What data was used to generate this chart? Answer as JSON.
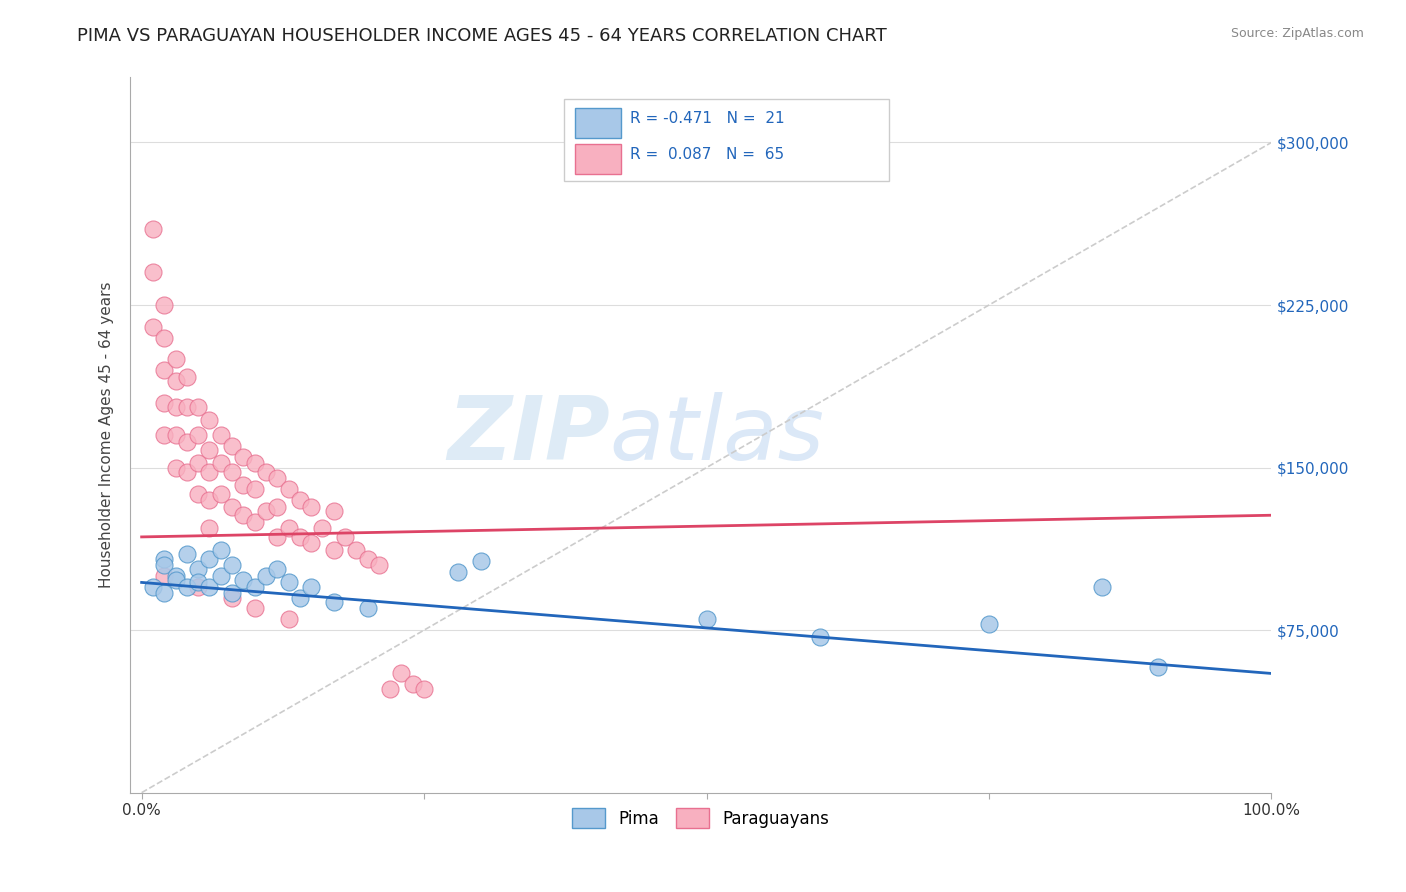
{
  "title": "PIMA VS PARAGUAYAN HOUSEHOLDER INCOME AGES 45 - 64 YEARS CORRELATION CHART",
  "source_text": "Source: ZipAtlas.com",
  "ylabel": "Householder Income Ages 45 - 64 years",
  "xlim": [
    -0.01,
    1.0
  ],
  "ylim": [
    0,
    330000
  ],
  "xticks": [
    0.0,
    0.25,
    0.5,
    0.75,
    1.0
  ],
  "xticklabels": [
    "0.0%",
    "",
    "",
    "",
    "100.0%"
  ],
  "yticks": [
    75000,
    150000,
    225000,
    300000
  ],
  "yticklabels": [
    "$75,000",
    "$150,000",
    "$225,000",
    "$300,000"
  ],
  "watermark_zip": "ZIP",
  "watermark_atlas": "atlas",
  "pima_color": "#a8c8e8",
  "paraguayan_color": "#f8b0c0",
  "pima_edge_color": "#5599cc",
  "paraguayan_edge_color": "#e87090",
  "pima_line_color": "#2266bb",
  "paraguayan_line_color": "#dd4466",
  "diag_line_color": "#cccccc",
  "background_color": "#ffffff",
  "title_fontsize": 13,
  "label_fontsize": 11,
  "tick_fontsize": 11,
  "pima_scatter_x": [
    0.01,
    0.02,
    0.02,
    0.02,
    0.03,
    0.03,
    0.04,
    0.04,
    0.05,
    0.05,
    0.06,
    0.06,
    0.07,
    0.07,
    0.08,
    0.08,
    0.09,
    0.1,
    0.11,
    0.12,
    0.13,
    0.14,
    0.15,
    0.17,
    0.2,
    0.28,
    0.3,
    0.5,
    0.6,
    0.75,
    0.85,
    0.9
  ],
  "pima_scatter_y": [
    95000,
    108000,
    92000,
    105000,
    100000,
    98000,
    110000,
    95000,
    103000,
    97000,
    108000,
    95000,
    112000,
    100000,
    105000,
    92000,
    98000,
    95000,
    100000,
    103000,
    97000,
    90000,
    95000,
    88000,
    85000,
    102000,
    107000,
    80000,
    72000,
    78000,
    95000,
    58000
  ],
  "paraguayan_scatter_x": [
    0.01,
    0.01,
    0.01,
    0.02,
    0.02,
    0.02,
    0.02,
    0.02,
    0.03,
    0.03,
    0.03,
    0.03,
    0.03,
    0.04,
    0.04,
    0.04,
    0.04,
    0.05,
    0.05,
    0.05,
    0.05,
    0.06,
    0.06,
    0.06,
    0.06,
    0.06,
    0.07,
    0.07,
    0.07,
    0.08,
    0.08,
    0.08,
    0.09,
    0.09,
    0.09,
    0.1,
    0.1,
    0.1,
    0.11,
    0.11,
    0.12,
    0.12,
    0.12,
    0.13,
    0.13,
    0.14,
    0.14,
    0.15,
    0.15,
    0.16,
    0.17,
    0.17,
    0.18,
    0.19,
    0.2,
    0.21,
    0.22,
    0.23,
    0.24,
    0.25,
    0.02,
    0.05,
    0.08,
    0.1,
    0.13
  ],
  "paraguayan_scatter_y": [
    260000,
    240000,
    215000,
    225000,
    210000,
    195000,
    180000,
    165000,
    200000,
    190000,
    178000,
    165000,
    150000,
    192000,
    178000,
    162000,
    148000,
    178000,
    165000,
    152000,
    138000,
    172000,
    158000,
    148000,
    135000,
    122000,
    165000,
    152000,
    138000,
    160000,
    148000,
    132000,
    155000,
    142000,
    128000,
    152000,
    140000,
    125000,
    148000,
    130000,
    145000,
    132000,
    118000,
    140000,
    122000,
    135000,
    118000,
    132000,
    115000,
    122000,
    130000,
    112000,
    118000,
    112000,
    108000,
    105000,
    48000,
    55000,
    50000,
    48000,
    100000,
    95000,
    90000,
    85000,
    80000
  ],
  "pima_trend_x0": 0.0,
  "pima_trend_y0": 97000,
  "pima_trend_x1": 1.0,
  "pima_trend_y1": 55000,
  "para_trend_x0": 0.0,
  "para_trend_y0": 118000,
  "para_trend_x1": 1.0,
  "para_trend_y1": 128000
}
